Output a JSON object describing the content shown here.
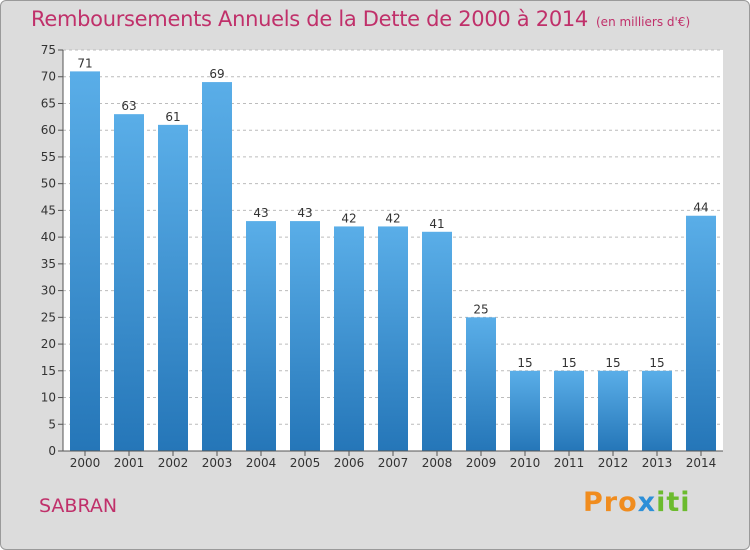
{
  "header": {
    "title": "Remboursements Annuels de la Dette de 2000 à 2014",
    "unit": "(en milliers d'€)"
  },
  "footer": {
    "commune": "SABRAN",
    "logo": [
      "Pro",
      "x",
      "iti"
    ]
  },
  "colors": {
    "title": "#c0306a",
    "bar_top": "#5aaee8",
    "bar_bottom": "#2576b8",
    "background": "#dcdcdc",
    "plot_background": "#ffffff",
    "grid": "#bcbcbc"
  },
  "chart_data": {
    "type": "bar",
    "title": "Remboursements Annuels de la Dette de 2000 à 2014",
    "subtitle": "(en milliers d'€)",
    "categories": [
      "2000",
      "2001",
      "2002",
      "2003",
      "2004",
      "2005",
      "2006",
      "2007",
      "2008",
      "2009",
      "2010",
      "2011",
      "2012",
      "2013",
      "2014"
    ],
    "values": [
      71,
      63,
      61,
      69,
      43,
      43,
      42,
      42,
      41,
      25,
      15,
      15,
      15,
      15,
      44
    ],
    "ylim": [
      0,
      75
    ],
    "yticks": [
      0,
      5,
      10,
      15,
      20,
      25,
      30,
      35,
      40,
      45,
      50,
      55,
      60,
      65,
      70,
      75
    ],
    "grid": true,
    "data_labels": true
  }
}
